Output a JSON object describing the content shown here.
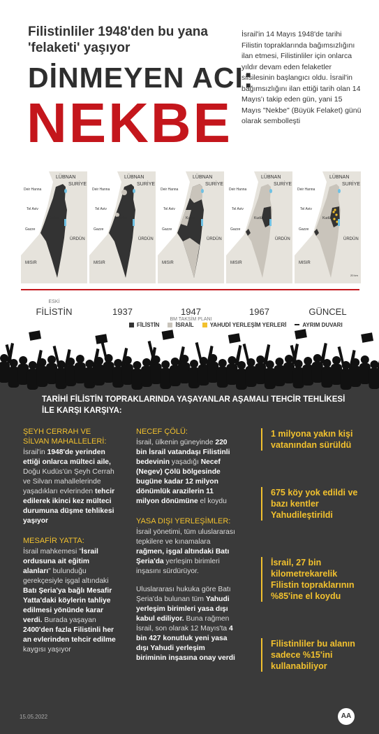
{
  "header": {
    "subtitle_line1": "Filistinliler 1948'den bu yana",
    "subtitle_line2": "'felaketi' yaşıyor",
    "title_line1": "DİNMEYEN ACI:",
    "title_line2": "NEKBE",
    "intro": "İsrail'in 14 Mayıs 1948'de tarihi Filistin topraklarında bağımsızlığını ilan etmesi, Filistinliler için onlarca yıldır devam eden felaketler silsilesinin başlangıcı oldu. İsrail'in bağımsızlığını ilan ettiği tarih olan 14 Mayıs'ı takip eden gün, yani 15 Mayıs \"Nekbe\" (Büyük Felaket) günü olarak sembolleşti"
  },
  "maps": {
    "place_labels": [
      "LÜBNAN",
      "SURİYE",
      "Deir Hanna",
      "Tel Aviv",
      "Kudüs",
      "Gazze",
      "ÜRDÜN",
      "MISIR"
    ],
    "scale": "20 km",
    "periods": [
      {
        "note": "ESKİ",
        "label": "FİLİSTİN"
      },
      {
        "label": "1937"
      },
      {
        "label": "1947",
        "note": "BM TAKSİM PLANI"
      },
      {
        "label": "1967"
      },
      {
        "label": "GÜNCEL"
      }
    ],
    "legend": [
      {
        "label": "FİLİSTİN",
        "color": "#333333"
      },
      {
        "label": "İSRAİL",
        "color": "#c9c4bb"
      },
      {
        "label": "YAHUDİ YERLEŞİM YERLERİ",
        "color": "#f2c12e"
      },
      {
        "label": "AYRIM DUVARI",
        "color": "#222222"
      }
    ]
  },
  "section": {
    "heading": "TARİHİ FİLİSTİN TOPRAKLARINDA YAŞAYANLAR AŞAMALI TEHCİR TEHLİKESİ İLE KARŞI KARŞIYA:",
    "columns": [
      [
        {
          "title": "ŞEYH CERRAH VE SİLVAN MAHALLELERİ:",
          "paragraphs": [
            [
              {
                "text": "İsrail'in ",
                "bold": false
              },
              {
                "text": "1948'de yerinden ettiği onlarca mülteci aile,",
                "bold": true
              },
              {
                "text": " Doğu Kudüs'ün Şeyh Cerrah ve Silvan mahallelerinde yaşadıkları evlerinden ",
                "bold": false
              },
              {
                "text": "tehcir edilerek ikinci kez mülteci durumuna düşme tehlikesi yaşıyor",
                "bold": true
              }
            ]
          ]
        },
        {
          "title": "MESAFİR YATTA:",
          "paragraphs": [
            [
              {
                "text": "İsrail mahkemesi \"",
                "bold": false
              },
              {
                "text": "İsrail ordusuna ait eğitim alanları",
                "bold": true
              },
              {
                "text": "\" bulunduğu gerekçesiyle işgal altındaki ",
                "bold": false
              },
              {
                "text": "Batı Şeria'ya bağlı Mesafir Yatta'daki köylerin tahliye edilmesi yönünde karar verdi.",
                "bold": true
              },
              {
                "text": " Burada yaşayan ",
                "bold": false
              },
              {
                "text": "2400'den fazla Filistinli her an evlerinden tehcir edilme",
                "bold": true
              },
              {
                "text": " kaygısı yaşıyor",
                "bold": false
              }
            ]
          ]
        }
      ],
      [
        {
          "title": "NECEF ÇÖLÜ:",
          "paragraphs": [
            [
              {
                "text": "İsrail, ülkenin güneyinde ",
                "bold": false
              },
              {
                "text": "220 bin İsrail vatandaşı Filistinli bedevinin",
                "bold": true
              },
              {
                "text": " yaşadığı ",
                "bold": false
              },
              {
                "text": "Necef (Negev) Çölü bölgesinde bugüne kadar 12 milyon dönümlük arazilerin 11 milyon dönümüne",
                "bold": true
              },
              {
                "text": " el koydu",
                "bold": false
              }
            ]
          ]
        },
        {
          "title": "YASA DIŞI YERLEŞİMLER:",
          "paragraphs": [
            [
              {
                "text": "İsrail yönetimi, tüm uluslararası tepkilere ve kınamalara ",
                "bold": false
              },
              {
                "text": "rağmen, işgal altındaki Batı Şeria'da",
                "bold": true
              },
              {
                "text": " yerleşim birimleri inşasını sürdürüyor.",
                "bold": false
              }
            ],
            [
              {
                "text": "Uluslararası hukuka göre Batı Şeria'da bulunan tüm ",
                "bold": false
              },
              {
                "text": "Yahudi yerleşim birimleri yasa dışı kabul ediliyor.",
                "bold": true
              },
              {
                "text": " Buna rağmen İsrail, son olarak 12 Mayıs'ta ",
                "bold": false
              },
              {
                "text": "4 bin 427 konutluk yeni yasa dışı Yahudi yerleşim biriminin inşasına onay verdi",
                "bold": true
              }
            ]
          ]
        }
      ]
    ],
    "facts": [
      "1 milyona yakın kişi vatanından sürüldü",
      "675 köy yok edildi ve bazı kentler Yahudileştirildi",
      "İsrail, 27 bin kilometrekarelik Filistin topraklarının %85'ine el koydu",
      "Filistinliler bu alanın sadece %15'ini kullanabiliyor"
    ]
  },
  "footer": {
    "date": "15.05.2022",
    "logo": "AA"
  }
}
